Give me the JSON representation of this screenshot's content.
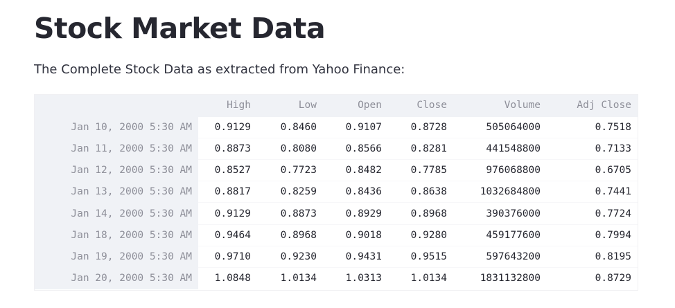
{
  "page": {
    "title": "Stock Market Data",
    "subtitle": "The Complete Stock Data as extracted from Yahoo Finance:"
  },
  "table": {
    "index_header": "",
    "columns": [
      "High",
      "Low",
      "Open",
      "Close",
      "Volume",
      "Adj Close"
    ],
    "rows": [
      {
        "index": "Jan 10, 2000 5:30 AM",
        "cells": [
          "0.9129",
          "0.8460",
          "0.9107",
          "0.8728",
          "505064000",
          "0.7518"
        ]
      },
      {
        "index": "Jan 11, 2000 5:30 AM",
        "cells": [
          "0.8873",
          "0.8080",
          "0.8566",
          "0.8281",
          "441548800",
          "0.7133"
        ]
      },
      {
        "index": "Jan 12, 2000 5:30 AM",
        "cells": [
          "0.8527",
          "0.7723",
          "0.8482",
          "0.7785",
          "976068800",
          "0.6705"
        ]
      },
      {
        "index": "Jan 13, 2000 5:30 AM",
        "cells": [
          "0.8817",
          "0.8259",
          "0.8436",
          "0.8638",
          "1032684800",
          "0.7441"
        ]
      },
      {
        "index": "Jan 14, 2000 5:30 AM",
        "cells": [
          "0.9129",
          "0.8873",
          "0.8929",
          "0.8968",
          "390376000",
          "0.7724"
        ]
      },
      {
        "index": "Jan 18, 2000 5:30 AM",
        "cells": [
          "0.9464",
          "0.8968",
          "0.9018",
          "0.9280",
          "459177600",
          "0.7994"
        ]
      },
      {
        "index": "Jan 19, 2000 5:30 AM",
        "cells": [
          "0.9710",
          "0.9230",
          "0.9431",
          "0.9515",
          "597643200",
          "0.8195"
        ]
      },
      {
        "index": "Jan 20, 2000 5:30 AM",
        "cells": [
          "1.0848",
          "1.0134",
          "1.0313",
          "1.0134",
          "1831132800",
          "0.8729"
        ]
      }
    ]
  }
}
